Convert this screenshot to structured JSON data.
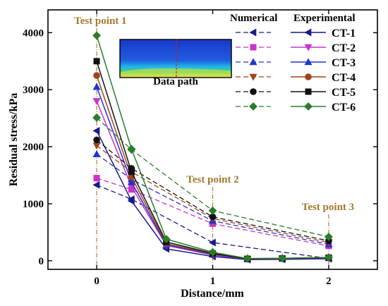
{
  "chart_data": {
    "type": "line",
    "xlabel": "Distance/mm",
    "ylabel": "Residual stress/kPa",
    "xlim": [
      -0.42,
      2.42
    ],
    "ylim": [
      -150,
      4400
    ],
    "x_ticks": [
      0,
      1,
      2
    ],
    "y_ticks": [
      0,
      1000,
      2000,
      3000,
      4000
    ],
    "legend_headers": {
      "numerical": "Numerical",
      "experimental": "Experimental"
    },
    "legend_position": "top-right",
    "test_points": [
      {
        "x": 0,
        "label": "Test point 1"
      },
      {
        "x": 1,
        "label": "Test point 2"
      },
      {
        "x": 2,
        "label": "Test point 3"
      }
    ],
    "inset": {
      "label": "Data path"
    },
    "series": [
      {
        "name": "CT-1",
        "color": "#1a1a8c",
        "num_marker": "triangle-left",
        "exp_marker": "triangle-left",
        "numerical": [
          [
            0,
            1330
          ],
          [
            0.3,
            1080
          ],
          [
            1,
            320
          ],
          [
            2,
            40
          ]
        ],
        "experimental": [
          [
            0,
            2280
          ],
          [
            0.3,
            1050
          ],
          [
            0.6,
            210
          ],
          [
            1,
            75
          ],
          [
            1.3,
            20
          ],
          [
            1.6,
            25
          ],
          [
            2,
            35
          ]
        ]
      },
      {
        "name": "CT-2",
        "color": "#cc33cc",
        "num_marker": "square",
        "exp_marker": "triangle-down",
        "numerical": [
          [
            0,
            1450
          ],
          [
            0.3,
            1250
          ],
          [
            1,
            650
          ],
          [
            2,
            260
          ]
        ],
        "experimental": [
          [
            0,
            2800
          ],
          [
            0.3,
            1300
          ],
          [
            0.6,
            270
          ],
          [
            1,
            100
          ],
          [
            1.3,
            28
          ],
          [
            1.6,
            35
          ],
          [
            2,
            45
          ]
        ]
      },
      {
        "name": "CT-3",
        "color": "#2233cc",
        "num_marker": "triangle-up",
        "exp_marker": "triangle-up",
        "numerical": [
          [
            0,
            1870
          ],
          [
            0.3,
            1430
          ],
          [
            1,
            700
          ],
          [
            2,
            290
          ]
        ],
        "experimental": [
          [
            0,
            3050
          ],
          [
            0.3,
            1380
          ],
          [
            0.6,
            280
          ],
          [
            1,
            110
          ],
          [
            1.3,
            30
          ],
          [
            1.6,
            38
          ],
          [
            2,
            48
          ]
        ]
      },
      {
        "name": "CT-4",
        "color": "#a0441c",
        "num_marker": "triangle-down",
        "exp_marker": "circle",
        "numerical": [
          [
            0,
            2020
          ],
          [
            0.3,
            1560
          ],
          [
            1,
            740
          ],
          [
            2,
            320
          ]
        ],
        "experimental": [
          [
            0,
            3250
          ],
          [
            0.3,
            1470
          ],
          [
            0.6,
            300
          ],
          [
            1,
            120
          ],
          [
            1.3,
            32
          ],
          [
            1.6,
            40
          ],
          [
            2,
            52
          ]
        ]
      },
      {
        "name": "CT-5",
        "color": "#111111",
        "num_marker": "circle",
        "exp_marker": "square",
        "numerical": [
          [
            0,
            2120
          ],
          [
            0.3,
            1620
          ],
          [
            1,
            770
          ],
          [
            2,
            350
          ]
        ],
        "experimental": [
          [
            0,
            3500
          ],
          [
            0.3,
            1560
          ],
          [
            0.6,
            330
          ],
          [
            1,
            130
          ],
          [
            1.3,
            35
          ],
          [
            1.6,
            42
          ],
          [
            2,
            55
          ]
        ]
      },
      {
        "name": "CT-6",
        "color": "#2a7d2a",
        "num_marker": "diamond",
        "exp_marker": "diamond",
        "numerical": [
          [
            0,
            2510
          ],
          [
            0.3,
            1950
          ],
          [
            1,
            880
          ],
          [
            2,
            420
          ]
        ],
        "experimental": [
          [
            0,
            3950
          ],
          [
            0.3,
            1960
          ],
          [
            0.6,
            380
          ],
          [
            1,
            150
          ],
          [
            1.3,
            40
          ],
          [
            1.6,
            45
          ],
          [
            2,
            60
          ]
        ]
      }
    ]
  }
}
